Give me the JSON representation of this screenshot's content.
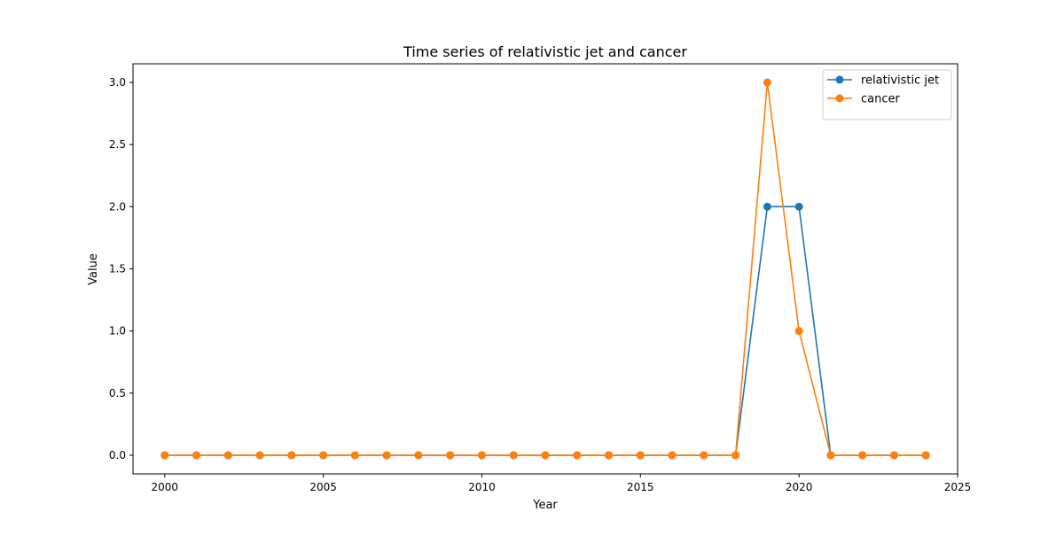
{
  "chart_data": {
    "type": "line",
    "title": "Time series of relativistic jet and cancer",
    "xlabel": "Year",
    "ylabel": "Value",
    "xlim": [
      1999,
      2025
    ],
    "ylim": [
      -0.15,
      3.15
    ],
    "xticks": [
      2000,
      2005,
      2010,
      2015,
      2020,
      2025
    ],
    "xtick_labels": [
      "2000",
      "2005",
      "2010",
      "2015",
      "2020",
      "2025"
    ],
    "yticks": [
      0.0,
      0.5,
      1.0,
      1.5,
      2.0,
      2.5,
      3.0
    ],
    "ytick_labels": [
      "0.0",
      "0.5",
      "1.0",
      "1.5",
      "2.0",
      "2.5",
      "3.0"
    ],
    "grid": false,
    "legend_position": "upper right",
    "x": [
      2000,
      2001,
      2002,
      2003,
      2004,
      2005,
      2006,
      2007,
      2008,
      2009,
      2010,
      2011,
      2012,
      2013,
      2014,
      2015,
      2016,
      2017,
      2018,
      2019,
      2020,
      2021,
      2022,
      2023,
      2024
    ],
    "series": [
      {
        "name": "relativistic jet",
        "color": "#1f77b4",
        "values": [
          0,
          0,
          0,
          0,
          0,
          0,
          0,
          0,
          0,
          0,
          0,
          0,
          0,
          0,
          0,
          0,
          0,
          0,
          0,
          2,
          2,
          0,
          0,
          0,
          0
        ]
      },
      {
        "name": "cancer",
        "color": "#ff7f0e",
        "values": [
          0,
          0,
          0,
          0,
          0,
          0,
          0,
          0,
          0,
          0,
          0,
          0,
          0,
          0,
          0,
          0,
          0,
          0,
          0,
          3,
          1,
          0,
          0,
          0,
          0
        ]
      }
    ]
  }
}
